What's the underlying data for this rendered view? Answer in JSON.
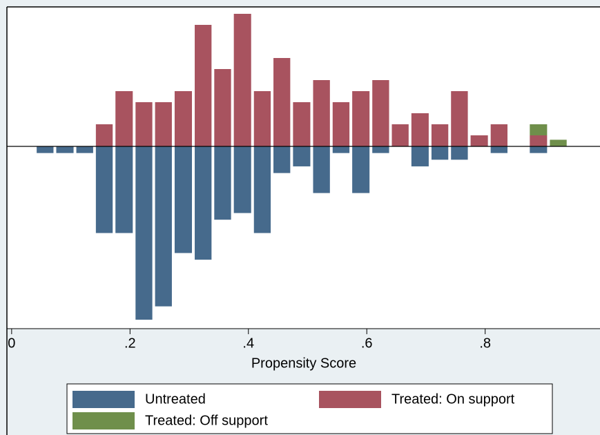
{
  "chart_data": {
    "type": "histogram",
    "x_label": "Propensity Score",
    "bins": [
      0.04,
      0.073,
      0.107,
      0.14,
      0.173,
      0.207,
      0.24,
      0.273,
      0.307,
      0.34,
      0.373,
      0.407,
      0.44,
      0.473,
      0.507,
      0.54,
      0.573,
      0.607,
      0.64,
      0.673,
      0.707,
      0.74,
      0.773,
      0.807,
      0.84,
      0.873,
      0.907,
      0.94
    ],
    "series": [
      {
        "name": "Untreated",
        "color": "#466a8c",
        "direction": "down",
        "values": [
          1,
          1,
          1,
          13,
          13,
          26,
          24,
          16,
          17,
          11,
          10,
          13,
          4,
          3,
          7,
          1,
          7,
          1,
          0,
          3,
          2,
          2,
          0,
          1,
          0,
          1,
          0
        ]
      },
      {
        "name": "Treated: On support",
        "color": "#a8535f",
        "direction": "up",
        "values": [
          0,
          0,
          0,
          2,
          5,
          4,
          4,
          5,
          11,
          7,
          12,
          5,
          8,
          4,
          6,
          4,
          5,
          6,
          2,
          3,
          2,
          5,
          1,
          2,
          0,
          1,
          0
        ]
      },
      {
        "name": "Treated: Off support",
        "color": "#6f8f4b",
        "direction": "up",
        "values": [
          0,
          0,
          0,
          0,
          0,
          0,
          0,
          0,
          0,
          0,
          0,
          0,
          0,
          0,
          0,
          0,
          0,
          0,
          0,
          0,
          0,
          0,
          0,
          0,
          0,
          1,
          0.6
        ]
      }
    ],
    "xlim": [
      -0.008,
      0.994
    ],
    "xticks": [
      0,
      {
        "value": 0.2,
        "label": ".2"
      },
      {
        "value": 0.4,
        "label": ".4"
      },
      {
        "value": 0.6,
        "label": ".6"
      },
      {
        "value": 0.8,
        "label": ".8"
      }
    ]
  }
}
